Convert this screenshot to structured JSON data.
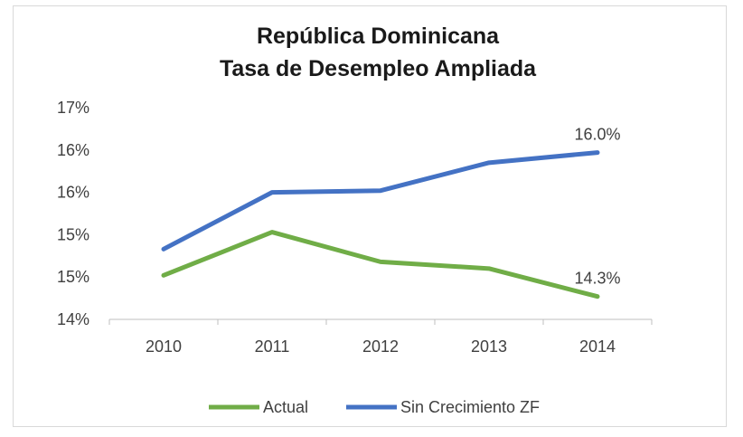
{
  "chart_data": {
    "type": "line",
    "title_lines": [
      "República Dominicana",
      "Tasa de Desempleo Ampliada"
    ],
    "xlabel": "",
    "ylabel": "",
    "categories": [
      "2010",
      "2011",
      "2012",
      "2013",
      "2014"
    ],
    "y_ticks": [
      {
        "value": 14.0,
        "label": "14%"
      },
      {
        "value": 14.5,
        "label": "15%"
      },
      {
        "value": 15.0,
        "label": "15%"
      },
      {
        "value": 15.5,
        "label": "16%"
      },
      {
        "value": 16.0,
        "label": "16%"
      },
      {
        "value": 16.5,
        "label": "17%"
      }
    ],
    "ylim": [
      14.0,
      16.5
    ],
    "grid": false,
    "legend_position": "bottom",
    "series": [
      {
        "name": "Actual",
        "color": "#70ad47",
        "values": [
          14.52,
          15.03,
          14.68,
          14.6,
          14.27
        ],
        "end_label": "14.3%"
      },
      {
        "name": "Sin Crecimiento ZF",
        "color": "#4472c4",
        "values": [
          14.83,
          15.5,
          15.52,
          15.85,
          15.97
        ],
        "end_label": "16.0%"
      }
    ]
  }
}
